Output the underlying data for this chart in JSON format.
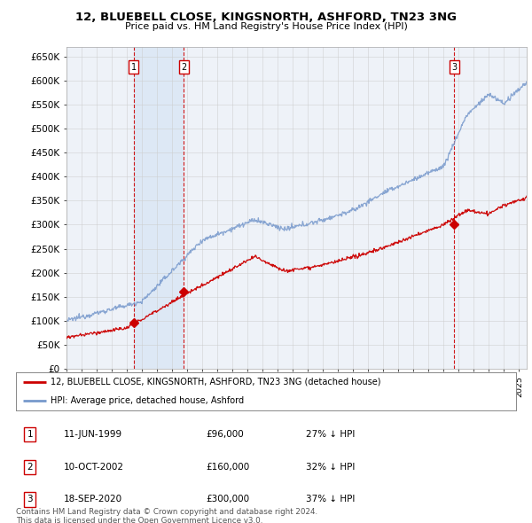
{
  "title": "12, BLUEBELL CLOSE, KINGSNORTH, ASHFORD, TN23 3NG",
  "subtitle": "Price paid vs. HM Land Registry's House Price Index (HPI)",
  "ylim": [
    0,
    670000
  ],
  "yticks": [
    0,
    50000,
    100000,
    150000,
    200000,
    250000,
    300000,
    350000,
    400000,
    450000,
    500000,
    550000,
    600000,
    650000
  ],
  "ytick_labels": [
    "£0",
    "£50K",
    "£100K",
    "£150K",
    "£200K",
    "£250K",
    "£300K",
    "£350K",
    "£400K",
    "£450K",
    "£500K",
    "£550K",
    "£600K",
    "£650K"
  ],
  "xlim_start": 1995.0,
  "xlim_end": 2025.5,
  "background_color": "#ffffff",
  "plot_bg_color": "#eef2f8",
  "grid_color": "#cccccc",
  "red_line_color": "#cc0000",
  "blue_line_color": "#7799cc",
  "vline_color": "#cc0000",
  "shade_color": "#dde8f5",
  "transactions": [
    {
      "year": 1999.44,
      "price": 96000,
      "label": "1",
      "date": "11-JUN-1999",
      "price_str": "£96,000",
      "pct": "27% ↓ HPI"
    },
    {
      "year": 2002.77,
      "price": 160000,
      "label": "2",
      "date": "10-OCT-2002",
      "price_str": "£160,000",
      "pct": "32% ↓ HPI"
    },
    {
      "year": 2020.71,
      "price": 300000,
      "label": "3",
      "date": "18-SEP-2020",
      "price_str": "£300,000",
      "pct": "37% ↓ HPI"
    }
  ],
  "legend_line1": "12, BLUEBELL CLOSE, KINGSNORTH, ASHFORD, TN23 3NG (detached house)",
  "legend_line2": "HPI: Average price, detached house, Ashford",
  "footer1": "Contains HM Land Registry data © Crown copyright and database right 2024.",
  "footer2": "This data is licensed under the Open Government Licence v3.0."
}
